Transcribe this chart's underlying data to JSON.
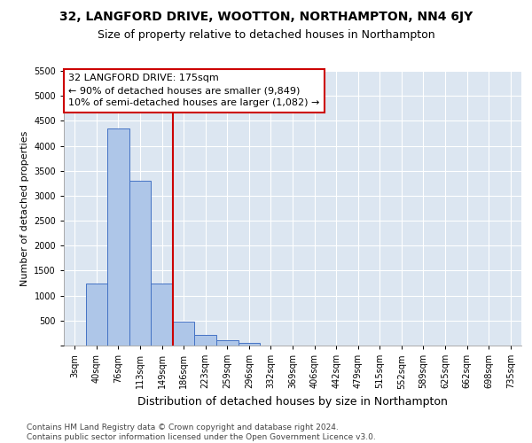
{
  "title1": "32, LANGFORD DRIVE, WOOTTON, NORTHAMPTON, NN4 6JY",
  "title2": "Size of property relative to detached houses in Northampton",
  "xlabel": "Distribution of detached houses by size in Northampton",
  "ylabel": "Number of detached properties",
  "categories": [
    "3sqm",
    "40sqm",
    "76sqm",
    "113sqm",
    "149sqm",
    "186sqm",
    "223sqm",
    "259sqm",
    "296sqm",
    "332sqm",
    "369sqm",
    "406sqm",
    "442sqm",
    "479sqm",
    "515sqm",
    "552sqm",
    "589sqm",
    "625sqm",
    "662sqm",
    "698sqm",
    "735sqm"
  ],
  "values": [
    0,
    1250,
    4350,
    3300,
    1250,
    480,
    210,
    100,
    60,
    0,
    0,
    0,
    0,
    0,
    0,
    0,
    0,
    0,
    0,
    0,
    0
  ],
  "bar_color": "#aec6e8",
  "bar_edge_color": "#4472c4",
  "vline_bin": 5,
  "vline_color": "#cc0000",
  "annotation_text": "32 LANGFORD DRIVE: 175sqm\n← 90% of detached houses are smaller (9,849)\n10% of semi-detached houses are larger (1,082) →",
  "annotation_box_color": "#ffffff",
  "annotation_box_edge_color": "#cc0000",
  "ylim": [
    0,
    5500
  ],
  "yticks": [
    0,
    500,
    1000,
    1500,
    2000,
    2500,
    3000,
    3500,
    4000,
    4500,
    5000,
    5500
  ],
  "footnote": "Contains HM Land Registry data © Crown copyright and database right 2024.\nContains public sector information licensed under the Open Government Licence v3.0.",
  "bg_color": "#ffffff",
  "plot_bg_color": "#dce6f1",
  "grid_color": "#ffffff",
  "title1_fontsize": 10,
  "title2_fontsize": 9,
  "annot_fontsize": 8,
  "tick_fontsize": 7,
  "ylabel_fontsize": 8,
  "xlabel_fontsize": 9,
  "footnote_fontsize": 6.5
}
